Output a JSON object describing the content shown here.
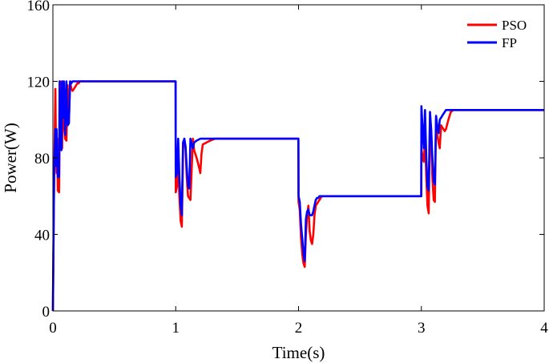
{
  "chart_data": {
    "type": "line",
    "title": "",
    "xlabel": "Time(s)",
    "ylabel": "Power(W)",
    "xlim": [
      0,
      4
    ],
    "ylim": [
      0,
      160
    ],
    "xticks": [
      0,
      1,
      2,
      3,
      4
    ],
    "yticks": [
      0,
      40,
      80,
      120,
      160
    ],
    "grid": false,
    "legend_position": "top-right",
    "series": [
      {
        "name": "PSO",
        "color": "#ff0000",
        "x": [
          0,
          0.01,
          0.02,
          0.025,
          0.03,
          0.035,
          0.04,
          0.05,
          0.06,
          0.07,
          0.075,
          0.08,
          0.085,
          0.09,
          0.1,
          0.11,
          0.12,
          0.125,
          0.13,
          0.14,
          0.15,
          0.16,
          0.17,
          0.18,
          0.19,
          0.2,
          0.21,
          0.22,
          0.24,
          0.26,
          0.28,
          0.3,
          0.35,
          0.5,
          0.999,
          1.0,
          1.01,
          1.02,
          1.03,
          1.04,
          1.05,
          1.06,
          1.07,
          1.08,
          1.09,
          1.1,
          1.12,
          1.14,
          1.15,
          1.17,
          1.19,
          1.2,
          1.21,
          1.22,
          1.25,
          1.28,
          1.32,
          1.6,
          1.999,
          2.0,
          2.01,
          2.02,
          2.03,
          2.04,
          2.05,
          2.06,
          2.07,
          2.08,
          2.09,
          2.1,
          2.11,
          2.12,
          2.13,
          2.14,
          2.15,
          2.16,
          2.17,
          2.18,
          2.19,
          2.2,
          2.22,
          2.25,
          2.6,
          2.999,
          3.0,
          3.01,
          3.02,
          3.03,
          3.04,
          3.05,
          3.06,
          3.07,
          3.08,
          3.09,
          3.1,
          3.11,
          3.12,
          3.13,
          3.14,
          3.15,
          3.16,
          3.17,
          3.18,
          3.19,
          3.2,
          3.22,
          3.24,
          3.26,
          3.28,
          3.3,
          3.6,
          4.0
        ],
        "y": [
          0,
          70,
          116,
          85,
          72,
          90,
          63,
          62,
          120,
          100,
          85,
          120,
          100,
          97,
          90,
          89,
          118,
          101,
          98,
          120,
          116,
          115,
          116,
          117,
          118,
          119,
          119,
          120,
          120,
          120,
          120,
          120,
          120,
          120,
          120,
          62,
          65,
          80,
          60,
          47,
          44,
          85,
          90,
          85,
          70,
          60,
          58,
          90,
          84,
          80,
          75,
          72,
          82,
          87,
          88,
          89,
          90,
          90,
          90,
          57,
          53,
          38,
          30,
          25,
          23,
          40,
          50,
          55,
          42,
          37,
          35,
          40,
          50,
          55,
          56,
          57,
          58,
          59,
          60,
          60,
          60,
          60,
          60,
          60,
          85,
          80,
          78,
          90,
          70,
          55,
          51,
          100,
          90,
          70,
          58,
          57,
          100,
          92,
          88,
          85,
          97,
          96,
          95,
          94,
          95,
          100,
          104,
          105,
          105,
          105,
          105,
          105
        ]
      },
      {
        "name": "FP",
        "color": "#0000ff",
        "x": [
          0,
          0.01,
          0.02,
          0.025,
          0.03,
          0.035,
          0.04,
          0.05,
          0.055,
          0.06,
          0.07,
          0.075,
          0.08,
          0.085,
          0.09,
          0.1,
          0.11,
          0.115,
          0.12,
          0.13,
          0.14,
          0.15,
          0.16,
          0.17,
          0.18,
          0.19,
          0.2,
          0.22,
          0.24,
          0.3,
          0.5,
          0.999,
          1.0,
          1.01,
          1.02,
          1.03,
          1.04,
          1.05,
          1.06,
          1.07,
          1.08,
          1.09,
          1.1,
          1.11,
          1.12,
          1.13,
          1.14,
          1.15,
          1.17,
          1.2,
          1.25,
          1.3,
          1.6,
          1.999,
          2.0,
          2.01,
          2.02,
          2.03,
          2.04,
          2.05,
          2.06,
          2.07,
          2.08,
          2.09,
          2.1,
          2.11,
          2.12,
          2.13,
          2.14,
          2.15,
          2.16,
          2.17,
          2.18,
          2.19,
          2.2,
          2.22,
          2.25,
          2.6,
          2.999,
          3.0,
          3.01,
          3.02,
          3.03,
          3.04,
          3.05,
          3.06,
          3.07,
          3.08,
          3.09,
          3.1,
          3.11,
          3.12,
          3.13,
          3.14,
          3.15,
          3.16,
          3.17,
          3.18,
          3.19,
          3.2,
          3.22,
          3.25,
          3.6,
          4.0
        ],
        "y": [
          0,
          70,
          95,
          76,
          95,
          80,
          70,
          70,
          120,
          97,
          84,
          120,
          104,
          101,
          120,
          92,
          120,
          105,
          97,
          98,
          120,
          119,
          120,
          120,
          120,
          120,
          120,
          120,
          120,
          120,
          120,
          120,
          70,
          72,
          90,
          70,
          55,
          50,
          88,
          90,
          86,
          75,
          65,
          64,
          90,
          87,
          85,
          88,
          89,
          90,
          90,
          90,
          90,
          90,
          60,
          57,
          45,
          38,
          30,
          26,
          48,
          52,
          53,
          50,
          50,
          50,
          52,
          55,
          58,
          59,
          59,
          60,
          60,
          60,
          60,
          60,
          60,
          60,
          60,
          107,
          95,
          85,
          105,
          80,
          65,
          63,
          104,
          95,
          80,
          68,
          66,
          102,
          96,
          93,
          100,
          101,
          102,
          103,
          104,
          105,
          105,
          105,
          105,
          105
        ]
      }
    ]
  }
}
